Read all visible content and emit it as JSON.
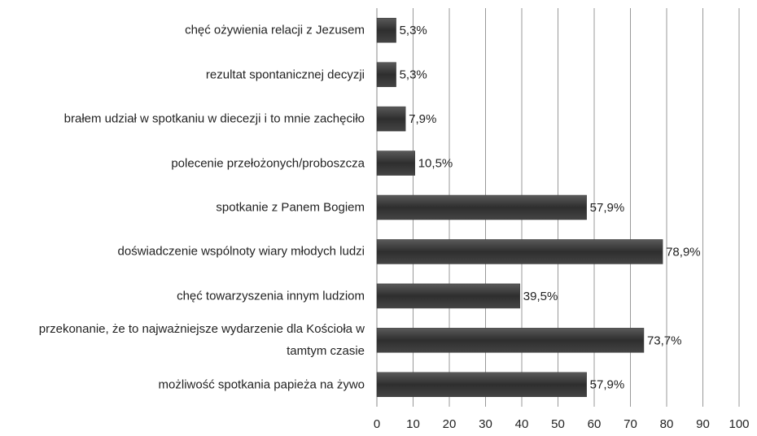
{
  "chart_data": {
    "type": "bar",
    "orientation": "horizontal",
    "categories": [
      "chęć ożywienia relacji z Jezusem",
      "rezultat spontanicznej decyzji",
      "brałem udział w spotkaniu w diecezji i to mnie zachęciło",
      "polecenie przełożonych/proboszcza",
      "spotkanie z Panem Bogiem",
      "doświadczenie wspólnoty wiary młodych ludzi",
      "chęć towarzyszenia innym ludziom",
      "przekonanie, że to najważniejsze wydarzenie dla Kościoła w tamtym czasie",
      "możliwość spotkania papieża na żywo"
    ],
    "values": [
      5.3,
      5.3,
      7.9,
      10.5,
      57.9,
      78.9,
      39.5,
      73.7,
      57.9
    ],
    "value_labels": [
      "5,3%",
      "5,3%",
      "7,9%",
      "10,5%",
      "57,9%",
      "78,9%",
      "39,5%",
      "73,7%",
      "57,9%"
    ],
    "color": "#3a3a3a",
    "xlim": [
      0,
      100
    ],
    "xticks": [
      0,
      10,
      20,
      30,
      40,
      50,
      60,
      70,
      80,
      90,
      100
    ],
    "grid": true
  }
}
